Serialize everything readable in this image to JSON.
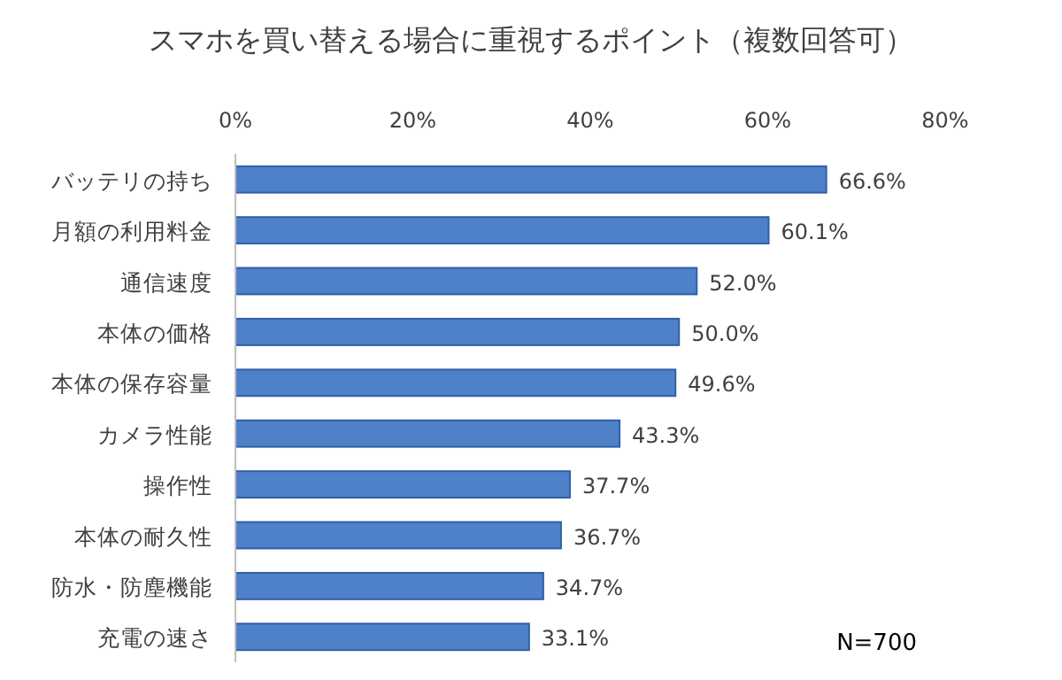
{
  "chart_data": {
    "type": "bar",
    "orientation": "horizontal",
    "title": "スマホを買い替える場合に重視するポイント（複数回答可）",
    "categories": [
      "バッテリの持ち",
      "月額の利用料金",
      "通信速度",
      "本体の価格",
      "本体の保存容量",
      "カメラ性能",
      "操作性",
      "本体の耐久性",
      "防水・防塵機能",
      "充電の速さ"
    ],
    "values": [
      66.6,
      60.1,
      52.0,
      50.0,
      49.6,
      43.3,
      37.7,
      36.7,
      34.7,
      33.1
    ],
    "value_labels": [
      "66.6%",
      "60.1%",
      "52.0%",
      "50.0%",
      "49.6%",
      "43.3%",
      "37.7%",
      "36.7%",
      "34.7%",
      "33.1%"
    ],
    "color": "#4f81c8",
    "xlim": [
      0,
      80
    ],
    "xticks": [
      {
        "value": 0,
        "label": "0%"
      },
      {
        "value": 20,
        "label": "20%"
      },
      {
        "value": 40,
        "label": "40%"
      },
      {
        "value": 60,
        "label": "60%"
      },
      {
        "value": 80,
        "label": "80%"
      }
    ],
    "grid": false,
    "annotations": [
      "N=700"
    ]
  }
}
